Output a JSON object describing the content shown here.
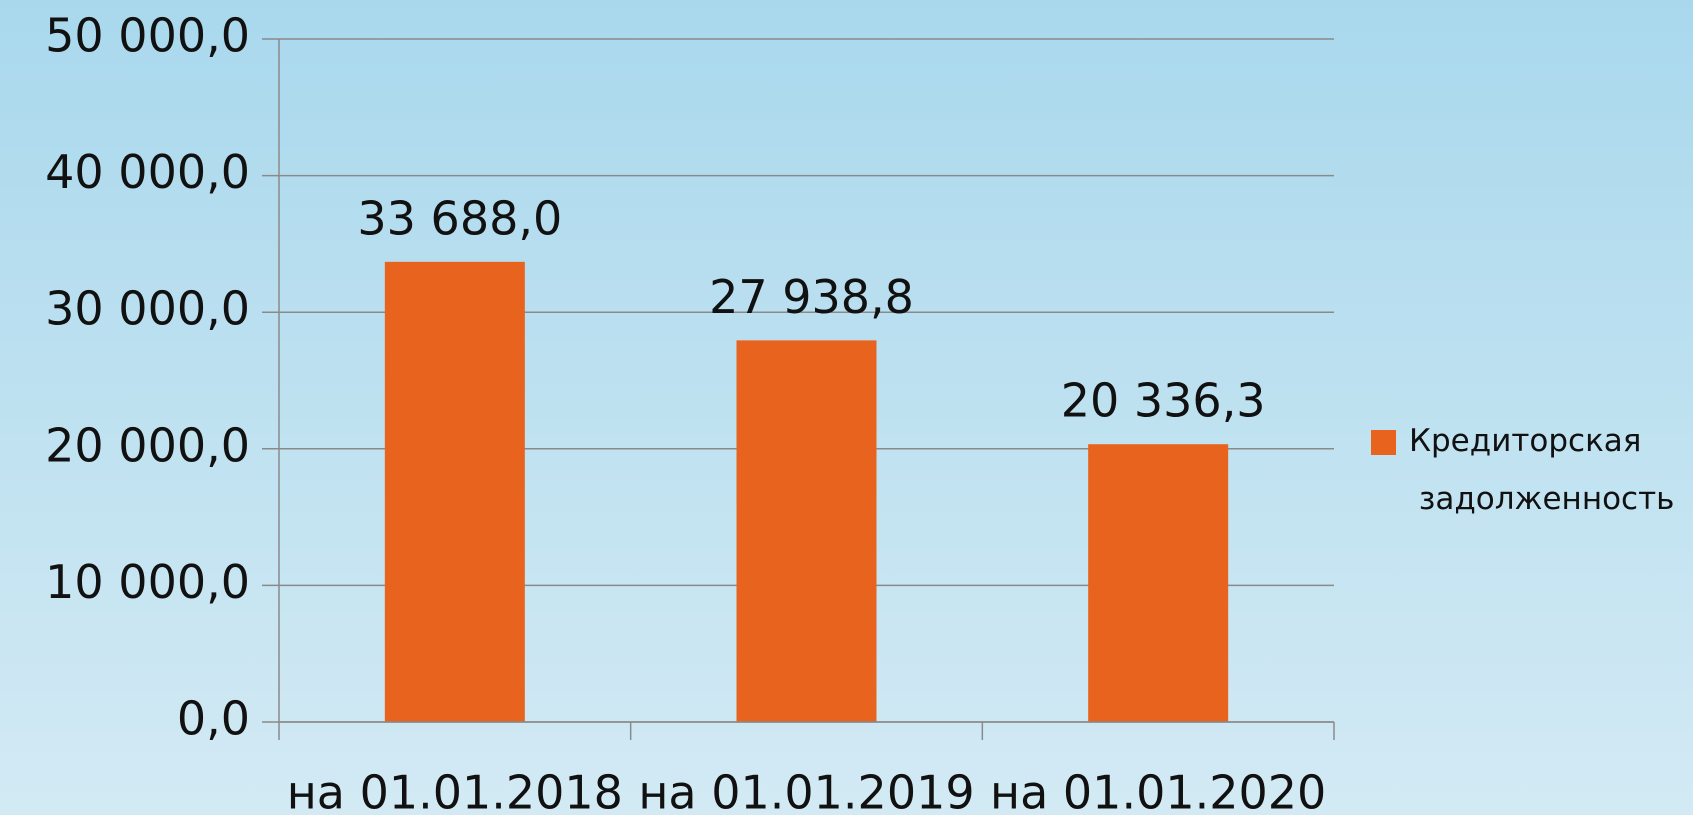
{
  "chart_data": {
    "type": "bar",
    "categories": [
      "на 01.01.2018",
      "на 01.01.2019",
      "на 01.01.2020"
    ],
    "series": [
      {
        "name": "Кредиторская задолженность",
        "color": "#e8641e",
        "values": [
          33688.0,
          27938.8,
          20336.3
        ],
        "value_labels": [
          "33 688,0",
          "27 938,8",
          "20 336,3"
        ]
      }
    ],
    "ylim": [
      0,
      50000
    ],
    "yticks": [
      {
        "value": 0,
        "label": "0,0"
      },
      {
        "value": 10000,
        "label": "10 000,0"
      },
      {
        "value": 20000,
        "label": "20 000,0"
      },
      {
        "value": 30000,
        "label": "30 000,0"
      },
      {
        "value": 40000,
        "label": "40 000,0"
      },
      {
        "value": 50000,
        "label": "50 000,0"
      }
    ],
    "grid": true,
    "legend": "right"
  }
}
